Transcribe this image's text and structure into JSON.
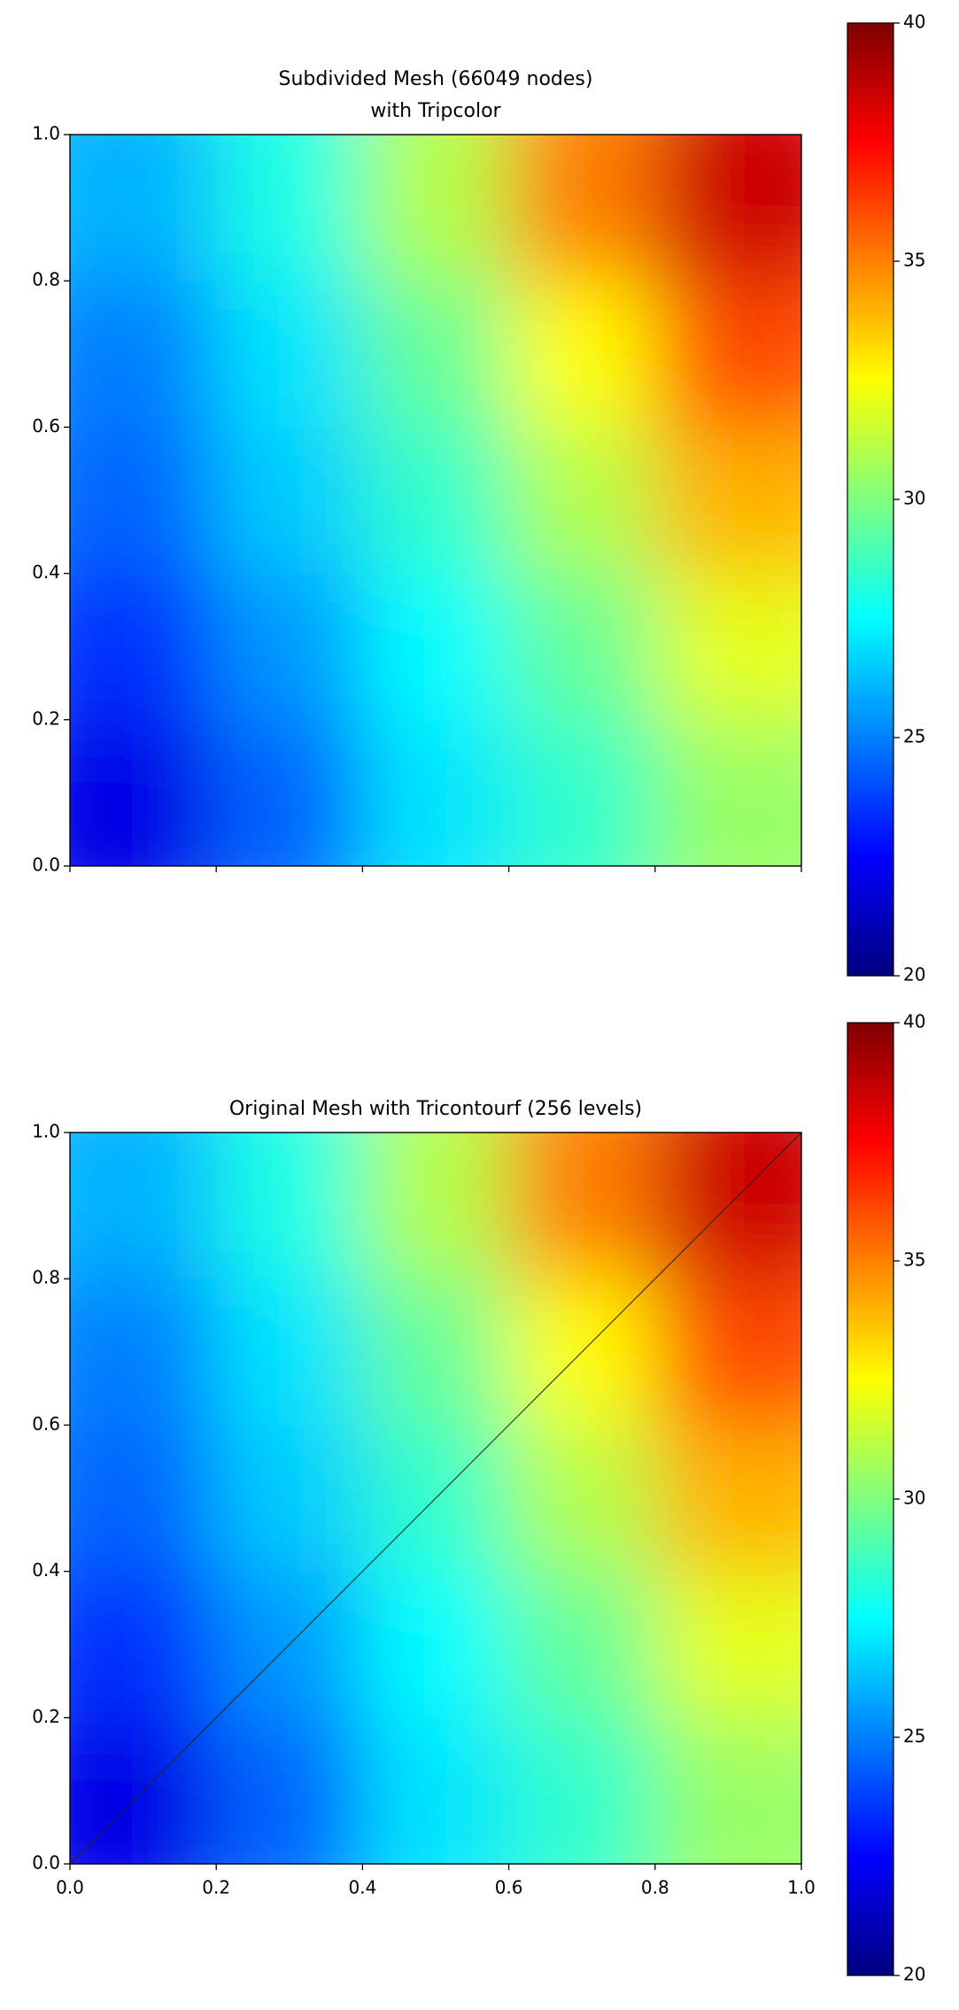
{
  "chart_data": [
    {
      "type": "heatmap",
      "title": [
        "Subdivided Mesh (66049 nodes)",
        "with Tripcolor"
      ],
      "x": [
        0.1,
        0.3,
        0.5,
        0.7,
        0.9
      ],
      "y": [
        0.1,
        0.3,
        0.5,
        0.7,
        0.9
      ],
      "z": [
        [
          22,
          24.5,
          27,
          28.5,
          30.5
        ],
        [
          23.5,
          25.5,
          27.5,
          29.5,
          32
        ],
        [
          24.5,
          26.5,
          28.5,
          31,
          34
        ],
        [
          25,
          27,
          29.5,
          32.5,
          36
        ],
        [
          26,
          28,
          31,
          35,
          38.5
        ]
      ],
      "colormap": "jet",
      "xlim": [
        0,
        1
      ],
      "ylim": [
        0,
        1
      ],
      "xticks": [
        {
          "value": 0,
          "label": "0.0"
        },
        0.2,
        0.4,
        0.6,
        0.8,
        {
          "value": 1,
          "label": "1.0"
        }
      ],
      "show_xtick_labels": false,
      "yticks": [
        {
          "value": 0,
          "label": "0.0"
        },
        0.2,
        0.4,
        0.6,
        0.8,
        {
          "value": 1,
          "label": "1.0"
        }
      ],
      "clim": [
        20,
        40
      ],
      "cticks": [
        20,
        25,
        30,
        35,
        40
      ]
    },
    {
      "type": "heatmap",
      "title": [
        "Original Mesh with Tricontourf (256 levels)"
      ],
      "x": [
        0.1,
        0.3,
        0.5,
        0.7,
        0.9
      ],
      "y": [
        0.1,
        0.3,
        0.5,
        0.7,
        0.9
      ],
      "z": [
        [
          22,
          24.5,
          27,
          28.5,
          30.5
        ],
        [
          23.5,
          25.5,
          27.5,
          29.5,
          32
        ],
        [
          24.5,
          26.5,
          28.5,
          31,
          34
        ],
        [
          25,
          27,
          29.5,
          32.5,
          36
        ],
        [
          26,
          28,
          31,
          35,
          38.5
        ]
      ],
      "edges": [
        [
          0,
          0,
          1,
          1
        ]
      ],
      "colormap": "jet",
      "xlim": [
        0,
        1
      ],
      "ylim": [
        0,
        1
      ],
      "xticks": [
        {
          "value": 0,
          "label": "0.0"
        },
        0.2,
        0.4,
        0.6,
        0.8,
        {
          "value": 1,
          "label": "1.0"
        }
      ],
      "show_xtick_labels": true,
      "yticks": [
        {
          "value": 0,
          "label": "0.0"
        },
        0.2,
        0.4,
        0.6,
        0.8,
        {
          "value": 1,
          "label": "1.0"
        }
      ],
      "clim": [
        20,
        40
      ],
      "cticks": [
        20,
        25,
        30,
        35,
        40
      ]
    }
  ]
}
